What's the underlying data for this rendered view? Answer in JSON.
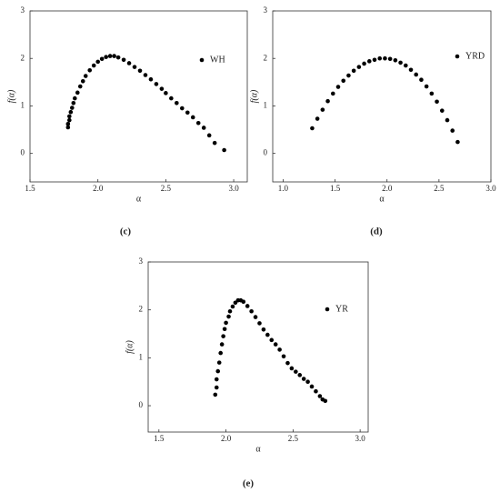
{
  "chart_data": [
    {
      "type": "scatter",
      "panel_label": "(c)",
      "x_label": "α",
      "y_label": "f(α)",
      "xlim": [
        1.5,
        3.1
      ],
      "ylim": [
        -0.6,
        3
      ],
      "xticks": [
        1.5,
        {
          "value": 2,
          "label": "2.0"
        },
        2.5,
        {
          "value": 3,
          "label": "3.0"
        }
      ],
      "yticks": [
        0,
        1,
        2,
        3
      ],
      "series": [
        {
          "name": "WH",
          "color": "#000000",
          "x": [
            1.78,
            1.78,
            1.79,
            1.79,
            1.8,
            1.81,
            1.82,
            1.83,
            1.85,
            1.87,
            1.89,
            1.91,
            1.94,
            1.97,
            2.0,
            2.03,
            2.06,
            2.09,
            2.12,
            2.15,
            2.19,
            2.23,
            2.27,
            2.31,
            2.35,
            2.39,
            2.43,
            2.47,
            2.5,
            2.54,
            2.58,
            2.62,
            2.66,
            2.7,
            2.74,
            2.78,
            2.82,
            2.86,
            2.93
          ],
          "values": [
            0.55,
            0.62,
            0.7,
            0.78,
            0.87,
            0.96,
            1.06,
            1.16,
            1.28,
            1.41,
            1.52,
            1.63,
            1.75,
            1.85,
            1.93,
            1.99,
            2.03,
            2.05,
            2.05,
            2.02,
            1.97,
            1.9,
            1.82,
            1.74,
            1.65,
            1.56,
            1.46,
            1.36,
            1.27,
            1.16,
            1.06,
            0.95,
            0.86,
            0.76,
            0.64,
            0.54,
            0.38,
            0.22,
            0.07
          ]
        }
      ]
    },
    {
      "type": "scatter",
      "panel_label": "(d)",
      "x_label": "α",
      "y_label": "f(α)",
      "xlim": [
        0.9,
        3.0
      ],
      "ylim": [
        -0.6,
        3
      ],
      "xticks": [
        {
          "value": 1,
          "label": "1.0"
        },
        1.5,
        {
          "value": 2,
          "label": "2.0"
        },
        2.5,
        {
          "value": 3,
          "label": "3.0"
        }
      ],
      "yticks": [
        0,
        1,
        2,
        3
      ],
      "series": [
        {
          "name": "YRD",
          "color": "#000000",
          "x": [
            1.28,
            1.33,
            1.38,
            1.43,
            1.48,
            1.53,
            1.58,
            1.63,
            1.68,
            1.73,
            1.78,
            1.83,
            1.88,
            1.93,
            1.98,
            2.03,
            2.08,
            2.13,
            2.18,
            2.23,
            2.28,
            2.33,
            2.38,
            2.43,
            2.48,
            2.53,
            2.58,
            2.63,
            2.68
          ],
          "values": [
            0.53,
            0.73,
            0.92,
            1.1,
            1.26,
            1.4,
            1.53,
            1.64,
            1.74,
            1.82,
            1.89,
            1.94,
            1.97,
            2.0,
            2.0,
            1.99,
            1.96,
            1.91,
            1.85,
            1.76,
            1.66,
            1.55,
            1.41,
            1.26,
            1.09,
            0.9,
            0.7,
            0.48,
            0.24
          ]
        }
      ]
    },
    {
      "type": "scatter",
      "panel_label": "(e)",
      "x_label": "α",
      "y_label": "f(α)",
      "xlim": [
        1.42,
        3.06
      ],
      "ylim": [
        -0.55,
        3
      ],
      "xticks": [
        1.5,
        {
          "value": 2,
          "label": "2.0"
        },
        2.5,
        {
          "value": 3,
          "label": "3.0"
        }
      ],
      "yticks": [
        0,
        1,
        2,
        3
      ],
      "series": [
        {
          "name": "YR",
          "color": "#000000",
          "x": [
            1.92,
            1.93,
            1.93,
            1.94,
            1.95,
            1.96,
            1.97,
            1.98,
            1.99,
            2.0,
            2.02,
            2.03,
            2.05,
            2.07,
            2.09,
            2.11,
            2.13,
            2.16,
            2.19,
            2.22,
            2.25,
            2.28,
            2.31,
            2.34,
            2.37,
            2.4,
            2.43,
            2.46,
            2.49,
            2.52,
            2.55,
            2.58,
            2.61,
            2.64,
            2.67,
            2.7,
            2.72,
            2.74
          ],
          "values": [
            0.23,
            0.38,
            0.55,
            0.72,
            0.9,
            1.1,
            1.28,
            1.45,
            1.6,
            1.73,
            1.86,
            1.97,
            2.07,
            2.15,
            2.2,
            2.2,
            2.17,
            2.08,
            1.97,
            1.85,
            1.72,
            1.59,
            1.48,
            1.37,
            1.28,
            1.17,
            1.03,
            0.89,
            0.78,
            0.71,
            0.64,
            0.56,
            0.5,
            0.4,
            0.3,
            0.2,
            0.13,
            0.1
          ]
        }
      ]
    }
  ]
}
